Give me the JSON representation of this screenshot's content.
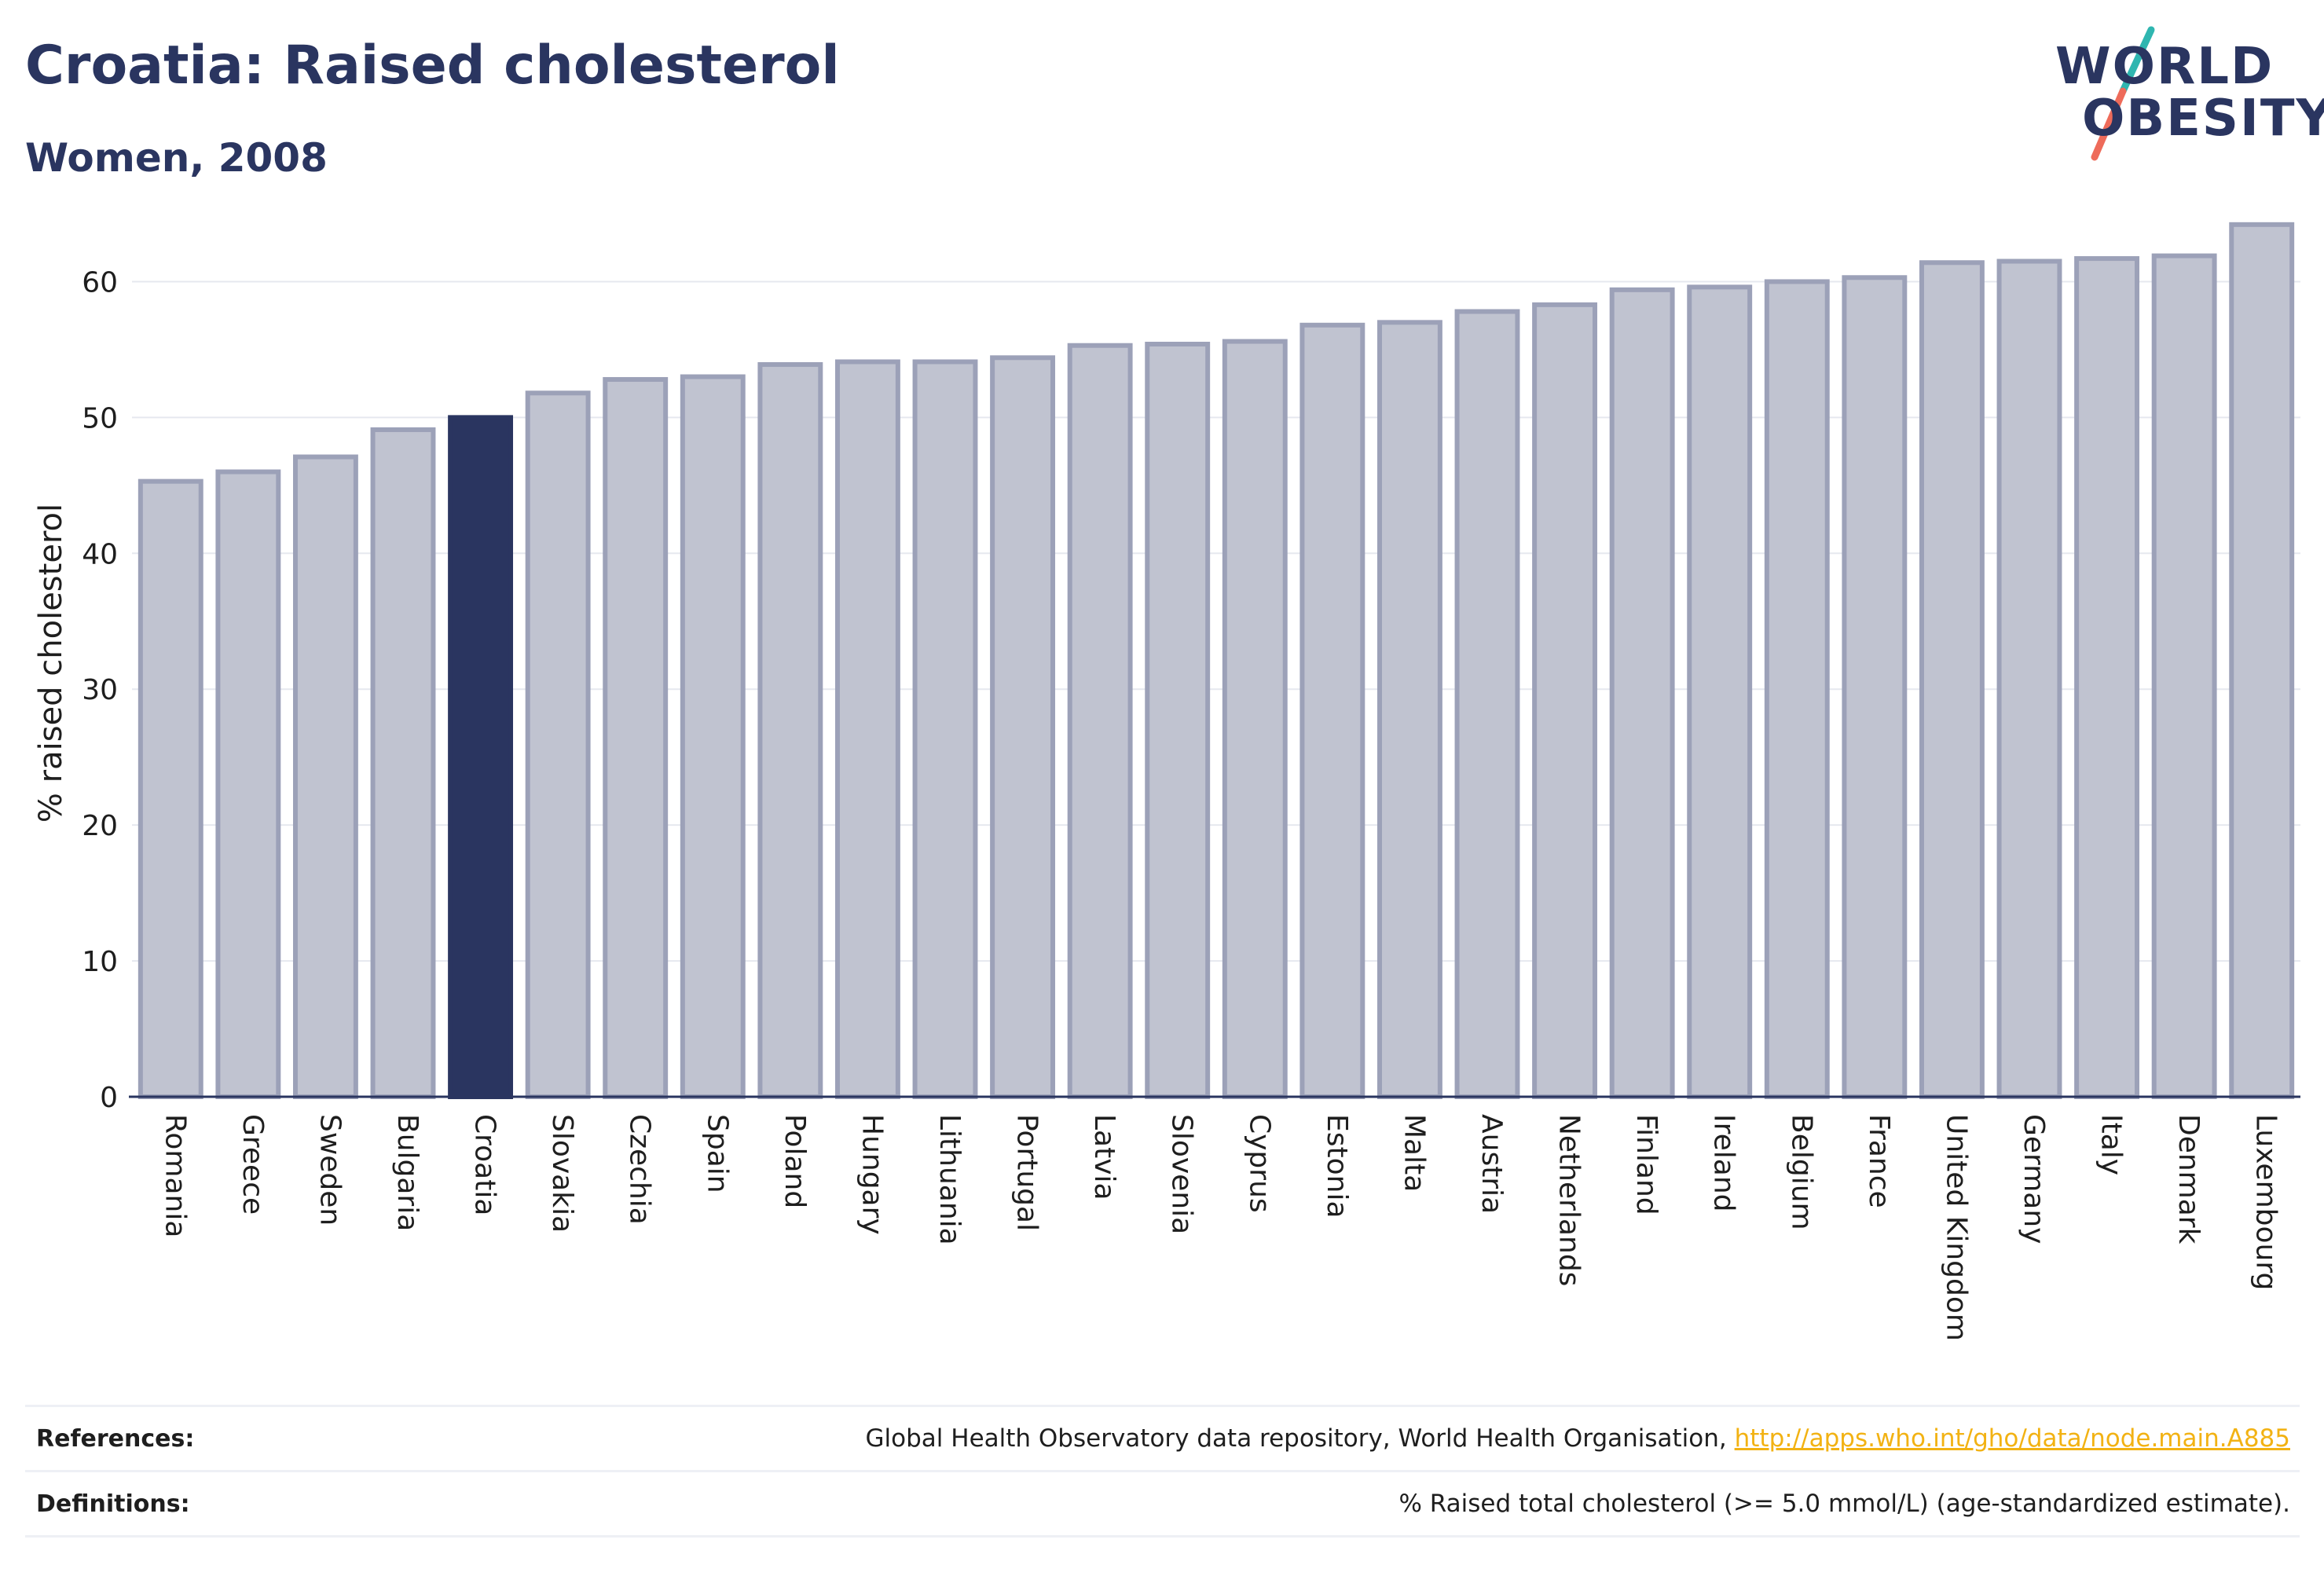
{
  "header": {
    "title": "Croatia: Raised cholesterol",
    "subtitle": "Women, 2008"
  },
  "logo": {
    "line1": "WORLD",
    "line2": "OBESITY",
    "accent_teal": "#2fb6b0",
    "accent_coral": "#ee6b5a"
  },
  "colors": {
    "bar_default": "#c0c3d0",
    "bar_border": "#9ca1b8",
    "bar_highlight": "#2a3560",
    "text_dark": "#2a3560",
    "link": "#f2b213"
  },
  "chart_data": {
    "type": "bar",
    "title": "Croatia: Raised cholesterol",
    "subtitle": "Women, 2008",
    "ylabel": "% raised cholesterol",
    "xlabel": "",
    "ylim": [
      0,
      65
    ],
    "yticks": [
      0,
      10,
      20,
      30,
      40,
      50,
      60
    ],
    "grid": true,
    "highlight": "Croatia",
    "categories": [
      "Romania",
      "Greece",
      "Sweden",
      "Bulgaria",
      "Croatia",
      "Slovakia",
      "Czechia",
      "Spain",
      "Poland",
      "Hungary",
      "Lithuania",
      "Portugal",
      "Latvia",
      "Slovenia",
      "Cyprus",
      "Estonia",
      "Malta",
      "Austria",
      "Netherlands",
      "Finland",
      "Ireland",
      "Belgium",
      "France",
      "United Kingdom",
      "Germany",
      "Italy",
      "Denmark",
      "Luxembourg"
    ],
    "values": [
      45.3,
      46.0,
      47.1,
      49.1,
      50.0,
      51.8,
      52.8,
      53.0,
      53.9,
      54.1,
      54.1,
      54.4,
      55.3,
      55.4,
      55.6,
      56.8,
      57.0,
      57.8,
      58.3,
      59.4,
      59.6,
      60.0,
      60.3,
      61.4,
      61.5,
      61.7,
      61.9,
      64.2
    ]
  },
  "references": {
    "label": "References:",
    "text": "Global Health Observatory data repository, World Health Organisation, ",
    "link": "http://apps.who.int/gho/data/node.main.A885"
  },
  "definitions": {
    "label": "Definitions:",
    "text": "% Raised total cholesterol (>= 5.0 mmol/L) (age-standardized estimate)."
  }
}
